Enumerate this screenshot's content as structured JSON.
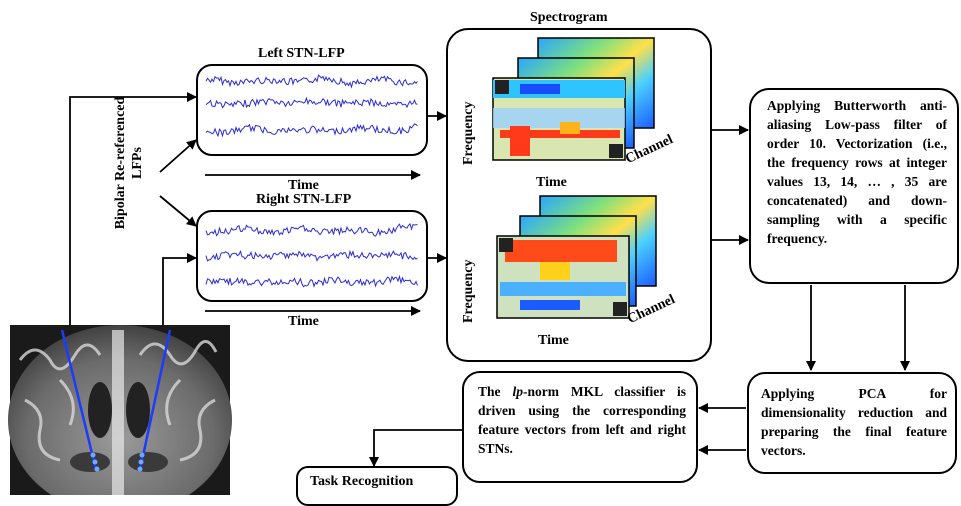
{
  "labels": {
    "left_stn": "Left STN-LFP",
    "right_stn": "Right STN-LFP",
    "spectrogram": "Spectrogram",
    "time_left": "Time",
    "time_right": "Time",
    "time_spec_top": "Time",
    "time_spec_bottom": "Time",
    "freq_top": "Frequency",
    "freq_bottom": "Frequency",
    "channel_top": "Channel",
    "channel_bottom": "Channel",
    "bipolar_line1": "Bipolar Re-referenced",
    "bipolar_line2": "LFPs",
    "task_recognition": "Task Recognition"
  },
  "boxes": {
    "butterworth": "Applying Butterworth anti-aliasing Low-pass filter of order 10. Vectorization (i.e., the frequency rows at integer values 13, 14, … , 35 are concatenated) and down-sampling with a specific frequency.",
    "pca": "Applying PCA for dimensionality reduction and preparing the final feature vectors.",
    "mkl_prefix": "The ",
    "mkl_italic": "lp",
    "mkl_suffix": "-norm MKL classifier is driven using the corresponding feature vectors from left and right STNs."
  },
  "colors": {
    "signal": "#2b2bd8",
    "lead": "#1a3cff"
  }
}
